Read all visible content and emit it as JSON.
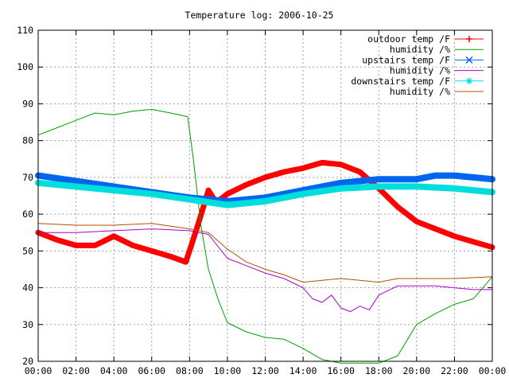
{
  "chart_data": {
    "type": "line",
    "title": "Temperature log: 2006-10-25",
    "xlabel": "",
    "ylabel": "",
    "xlim": [
      0,
      24
    ],
    "ylim": [
      20,
      110
    ],
    "x_ticks": [
      "00:00",
      "02:00",
      "04:00",
      "06:00",
      "08:00",
      "10:00",
      "12:00",
      "14:00",
      "16:00",
      "18:00",
      "20:00",
      "22:00",
      "00:00"
    ],
    "y_ticks": [
      20,
      30,
      40,
      50,
      60,
      70,
      80,
      90,
      100,
      110
    ],
    "grid": true,
    "legend_position": "top-right",
    "series": [
      {
        "name": "outdoor temp /F",
        "color": "#ff0000",
        "marker": "plus",
        "x": [
          0,
          1,
          2,
          3,
          4,
          5,
          6,
          7,
          7.8,
          8,
          8.5,
          9,
          9.3,
          9.5,
          10,
          11,
          12,
          13,
          14,
          15,
          16,
          17,
          18,
          19,
          20,
          21,
          22,
          23,
          24
        ],
        "y": [
          55,
          53,
          51.5,
          51.5,
          54,
          51.5,
          50,
          48.5,
          47,
          50,
          58,
          66.5,
          64,
          63.5,
          65.5,
          68,
          70,
          71.5,
          72.5,
          74,
          73.5,
          71.5,
          67,
          62,
          58,
          56,
          54,
          52.5,
          51
        ]
      },
      {
        "name": "humidity /%",
        "color": "#00a000",
        "marker": "none",
        "x": [
          0,
          1,
          2,
          3,
          4,
          5,
          6,
          7,
          7.9,
          8.2,
          8.6,
          9,
          9.5,
          10,
          11,
          12,
          13,
          14,
          15,
          16,
          17,
          18,
          19,
          20,
          21,
          22,
          23,
          24
        ],
        "y": [
          81.5,
          83.5,
          85.5,
          87.5,
          87,
          88,
          88.5,
          87.5,
          86.5,
          75,
          57,
          45,
          37,
          30.5,
          28,
          26.5,
          26,
          23.5,
          20.5,
          19.5,
          19.5,
          19.5,
          21.5,
          30,
          33,
          35.5,
          37,
          43
        ]
      },
      {
        "name": "upstairs temp /F",
        "color": "#0066ee",
        "marker": "x",
        "x": [
          0,
          2,
          4,
          6,
          8,
          10,
          12,
          14,
          16,
          18,
          20,
          21,
          22,
          23,
          24
        ],
        "y": [
          70.5,
          69,
          67.5,
          66,
          64.5,
          63.5,
          64.5,
          66.5,
          68.5,
          69.5,
          69.5,
          70.5,
          70.5,
          70,
          69.5
        ]
      },
      {
        "name": "humidity /%",
        "color": "#aa00cc",
        "marker": "none",
        "x": [
          0,
          2,
          4,
          6,
          8,
          9,
          10,
          11,
          12,
          13,
          14,
          14.5,
          15,
          15.5,
          16,
          16.5,
          17,
          17.5,
          18,
          19,
          20,
          21,
          22,
          23,
          24
        ],
        "y": [
          55,
          55,
          55.5,
          56,
          55.5,
          54.5,
          48,
          46,
          44,
          42.5,
          40,
          37,
          36,
          38,
          34.5,
          33.5,
          35,
          34,
          38,
          40.5,
          40.5,
          40.5,
          40,
          39.5,
          39.5
        ]
      },
      {
        "name": "downstairs temp /F",
        "color": "#00dddd",
        "marker": "star",
        "x": [
          0,
          2,
          4,
          6,
          8,
          10,
          12,
          14,
          16,
          18,
          20,
          22,
          24
        ],
        "y": [
          68.5,
          67.5,
          66.5,
          65.5,
          64,
          62.5,
          63.5,
          65.5,
          67,
          67.5,
          67.5,
          67,
          66
        ]
      },
      {
        "name": "humidity /%",
        "color": "#b25000",
        "marker": "none",
        "x": [
          0,
          2,
          4,
          6,
          8,
          9,
          10,
          11,
          12,
          13,
          14,
          15,
          16,
          17,
          18,
          19,
          20,
          22,
          24
        ],
        "y": [
          57.5,
          57,
          57,
          57.5,
          56,
          55,
          50.5,
          47,
          45,
          43.5,
          41.5,
          42,
          42.5,
          42,
          41.5,
          42.5,
          42.5,
          42.5,
          43
        ]
      }
    ]
  }
}
